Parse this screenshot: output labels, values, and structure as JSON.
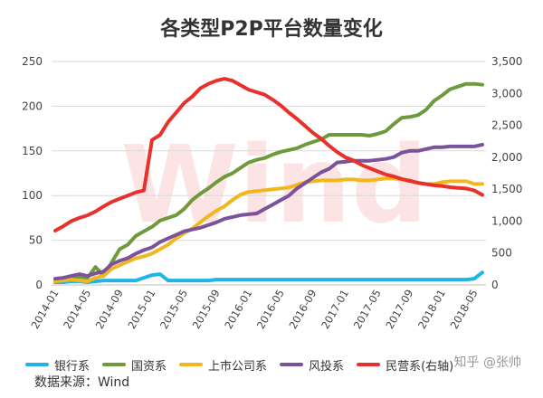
{
  "title": "各类型P2P平台数量变化",
  "source": "数据来源：Wind",
  "credit": "知乎 @张帅",
  "watermark": "Wind",
  "chart_data": {
    "type": "line",
    "x": [
      "2014-01",
      "2014-02",
      "2014-03",
      "2014-04",
      "2014-05",
      "2014-06",
      "2014-07",
      "2014-08",
      "2014-09",
      "2014-10",
      "2014-11",
      "2014-12",
      "2015-01",
      "2015-02",
      "2015-03",
      "2015-04",
      "2015-05",
      "2015-06",
      "2015-07",
      "2015-08",
      "2015-09",
      "2015-10",
      "2015-11",
      "2015-12",
      "2016-01",
      "2016-02",
      "2016-03",
      "2016-04",
      "2016-05",
      "2016-06",
      "2016-07",
      "2016-08",
      "2016-09",
      "2016-10",
      "2016-11",
      "2016-12",
      "2017-01",
      "2017-02",
      "2017-03",
      "2017-04",
      "2017-05",
      "2017-06",
      "2017-07",
      "2017-08",
      "2017-09",
      "2017-10",
      "2017-11",
      "2017-12",
      "2018-01",
      "2018-02",
      "2018-03",
      "2018-04",
      "2018-05",
      "2018-06"
    ],
    "xtick_labels": [
      "2014-01",
      "2014-05",
      "2014-09",
      "2015-01",
      "2015-05",
      "2015-09",
      "2016-01",
      "2016-05",
      "2016-09",
      "2017-01",
      "2017-05",
      "2017-09",
      "2018-01",
      "2018-05"
    ],
    "ylim_left": [
      0,
      250
    ],
    "yticks_left": [
      "0",
      "50",
      "100",
      "150",
      "200",
      "250"
    ],
    "ylim_right": [
      0,
      3500
    ],
    "yticks_right": [
      "0",
      "500",
      "1,000",
      "1,500",
      "2,000",
      "2,500",
      "3,000",
      "3,500"
    ],
    "series": [
      {
        "name": "银行系",
        "axis": "left",
        "color": "#1fb5e8",
        "values": [
          3,
          3,
          4,
          4,
          3,
          4,
          5,
          5,
          5,
          5,
          5,
          8,
          11,
          12,
          5,
          5,
          5,
          5,
          5,
          5,
          6,
          6,
          6,
          6,
          6,
          6,
          6,
          6,
          6,
          6,
          6,
          6,
          6,
          6,
          6,
          6,
          6,
          6,
          6,
          6,
          6,
          6,
          6,
          6,
          6,
          6,
          6,
          6,
          6,
          6,
          6,
          6,
          7,
          14
        ]
      },
      {
        "name": "国资系",
        "axis": "left",
        "color": "#6e9a3c",
        "values": [
          6,
          7,
          8,
          9,
          8,
          20,
          10,
          25,
          40,
          45,
          55,
          60,
          65,
          72,
          75,
          78,
          85,
          95,
          102,
          108,
          115,
          121,
          125,
          131,
          137,
          140,
          142,
          146,
          149,
          151,
          153,
          157,
          160,
          163,
          168,
          168,
          168,
          168,
          168,
          167,
          169,
          172,
          180,
          187,
          188,
          190,
          196,
          206,
          212,
          219,
          222,
          225,
          225,
          224
        ]
      },
      {
        "name": "上市公司系",
        "axis": "left",
        "color": "#f2b71d",
        "values": [
          4,
          5,
          6,
          5,
          4,
          8,
          10,
          18,
          22,
          26,
          30,
          32,
          35,
          40,
          45,
          52,
          58,
          63,
          70,
          77,
          83,
          88,
          95,
          101,
          104,
          105,
          106,
          107,
          108,
          109,
          112,
          115,
          116,
          117,
          117,
          117,
          118,
          118,
          117,
          117,
          118,
          119,
          119,
          118,
          117,
          114,
          113,
          113,
          115,
          116,
          116,
          116,
          113,
          113
        ]
      },
      {
        "name": "风投系",
        "axis": "left",
        "color": "#7b539c",
        "values": [
          7,
          8,
          10,
          12,
          10,
          13,
          15,
          23,
          27,
          30,
          35,
          39,
          42,
          48,
          52,
          56,
          60,
          62,
          64,
          67,
          70,
          74,
          76,
          78,
          79,
          80,
          85,
          90,
          95,
          100,
          108,
          114,
          120,
          126,
          130,
          137,
          138,
          139,
          139,
          139,
          140,
          141,
          143,
          148,
          150,
          150,
          152,
          154,
          154,
          155,
          155,
          155,
          155,
          157
        ]
      },
      {
        "name": "民营系(右轴)",
        "axis": "right",
        "color": "#e8312b",
        "values": [
          850,
          920,
          1000,
          1050,
          1090,
          1150,
          1230,
          1300,
          1350,
          1400,
          1450,
          1480,
          2270,
          2350,
          2550,
          2700,
          2850,
          2950,
          3080,
          3150,
          3200,
          3230,
          3200,
          3130,
          3060,
          3020,
          2980,
          2900,
          2810,
          2700,
          2600,
          2490,
          2380,
          2290,
          2180,
          2080,
          2000,
          1950,
          1880,
          1830,
          1780,
          1730,
          1700,
          1660,
          1630,
          1600,
          1580,
          1560,
          1550,
          1530,
          1520,
          1510,
          1480,
          1410
        ]
      }
    ]
  }
}
